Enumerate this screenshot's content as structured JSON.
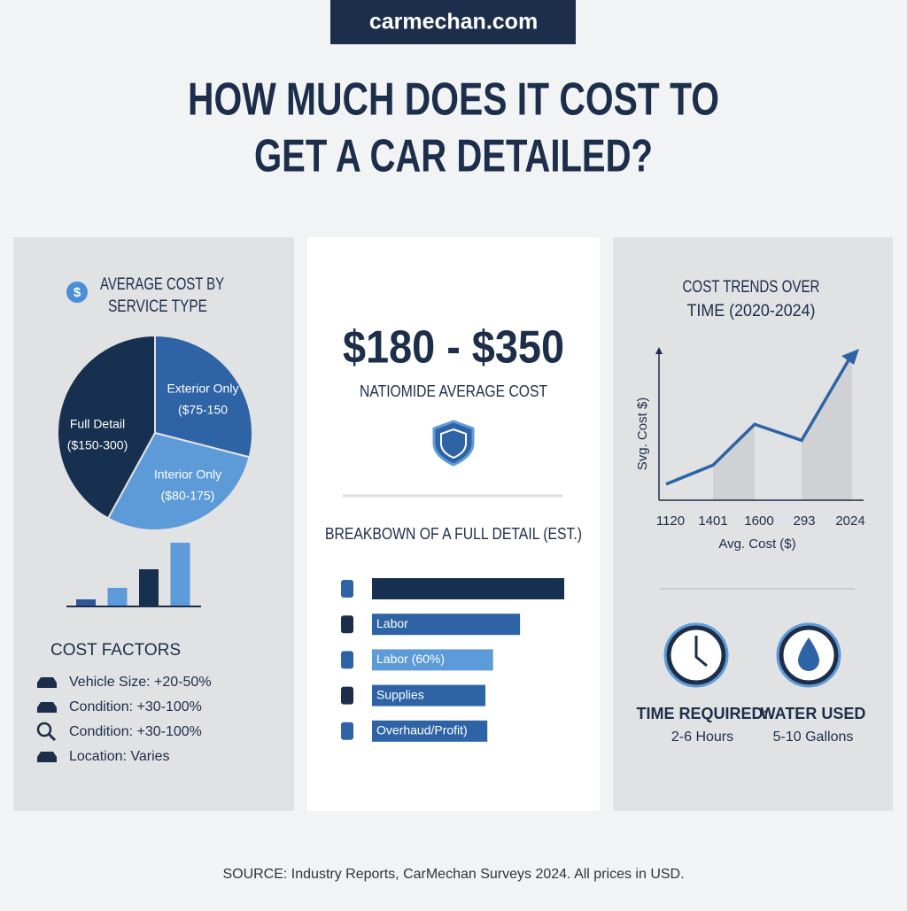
{
  "header": {
    "site": "carmechan.com",
    "title_lines": [
      "HOW MUCH DOES IT COST TO",
      "GET A CAR DETAILED?"
    ]
  },
  "left": {
    "icon": "$",
    "title_lines": [
      "AVERAGE COST BY",
      "SERVICE TYPE"
    ],
    "ranges": [
      "($75-150",
      "($80-175)",
      "($150-300)"
    ],
    "cost_factors": {
      "title": "COST FACTORS",
      "items": [
        "Vehicle Size: +20-50%",
        "Condition: +30-100%",
        "Condition: +30-100%",
        "Location: Varies"
      ]
    }
  },
  "middle": {
    "headline": "$180 - $350",
    "subtitle": "NATIOMIDE AVERAGE COST"
  },
  "right": {
    "stats": [
      {
        "label": "TIME REQUIRED:",
        "value": "2-6 Hours"
      },
      {
        "label": "WATER USED",
        "value": "5-10 Gallons"
      }
    ]
  },
  "footer": "SOURCE: Industry Reports, CarMechan Surveys 2024. All prices in USD.",
  "chart_data": [
    {
      "type": "pie",
      "categories": [
        "Exterior Only",
        "Interior Only",
        "Full Detail"
      ],
      "values": [
        29,
        29,
        42
      ],
      "colors": [
        "#2e64a6",
        "#5d9bd8",
        "#18304f"
      ]
    },
    {
      "type": "bar",
      "categories": [
        null,
        null,
        null,
        null
      ],
      "values": [
        7,
        20,
        41,
        71
      ],
      "colors": [
        "#2b5797",
        "#5d9bd8",
        "#18304f",
        "#5d9bd8"
      ]
    },
    {
      "type": "hbar",
      "title": "BREAKBOWN OF A FULL DETAIL (EST.)",
      "categories": [
        null,
        "Labor",
        "Labor (60%)",
        "Supplies",
        "Overhaud/Profit)"
      ],
      "values": [
        100,
        77,
        63,
        59,
        60
      ],
      "colors": [
        "#18304f",
        "#2e64a6",
        "#5d9bd8",
        "#2e64a6",
        "#2e64a6"
      ]
    },
    {
      "type": "line",
      "title": [
        "COST TRENDS OVER",
        "TIME (2020-2024)"
      ],
      "categories": [
        "1120",
        "1401",
        "1600",
        "293",
        "2024"
      ],
      "values": [
        11,
        24,
        52,
        41,
        100
      ],
      "xlabel": "Avg. Cost ($)",
      "ylabel": "Svg. Cost $)",
      "color": "#2e64a6"
    }
  ]
}
